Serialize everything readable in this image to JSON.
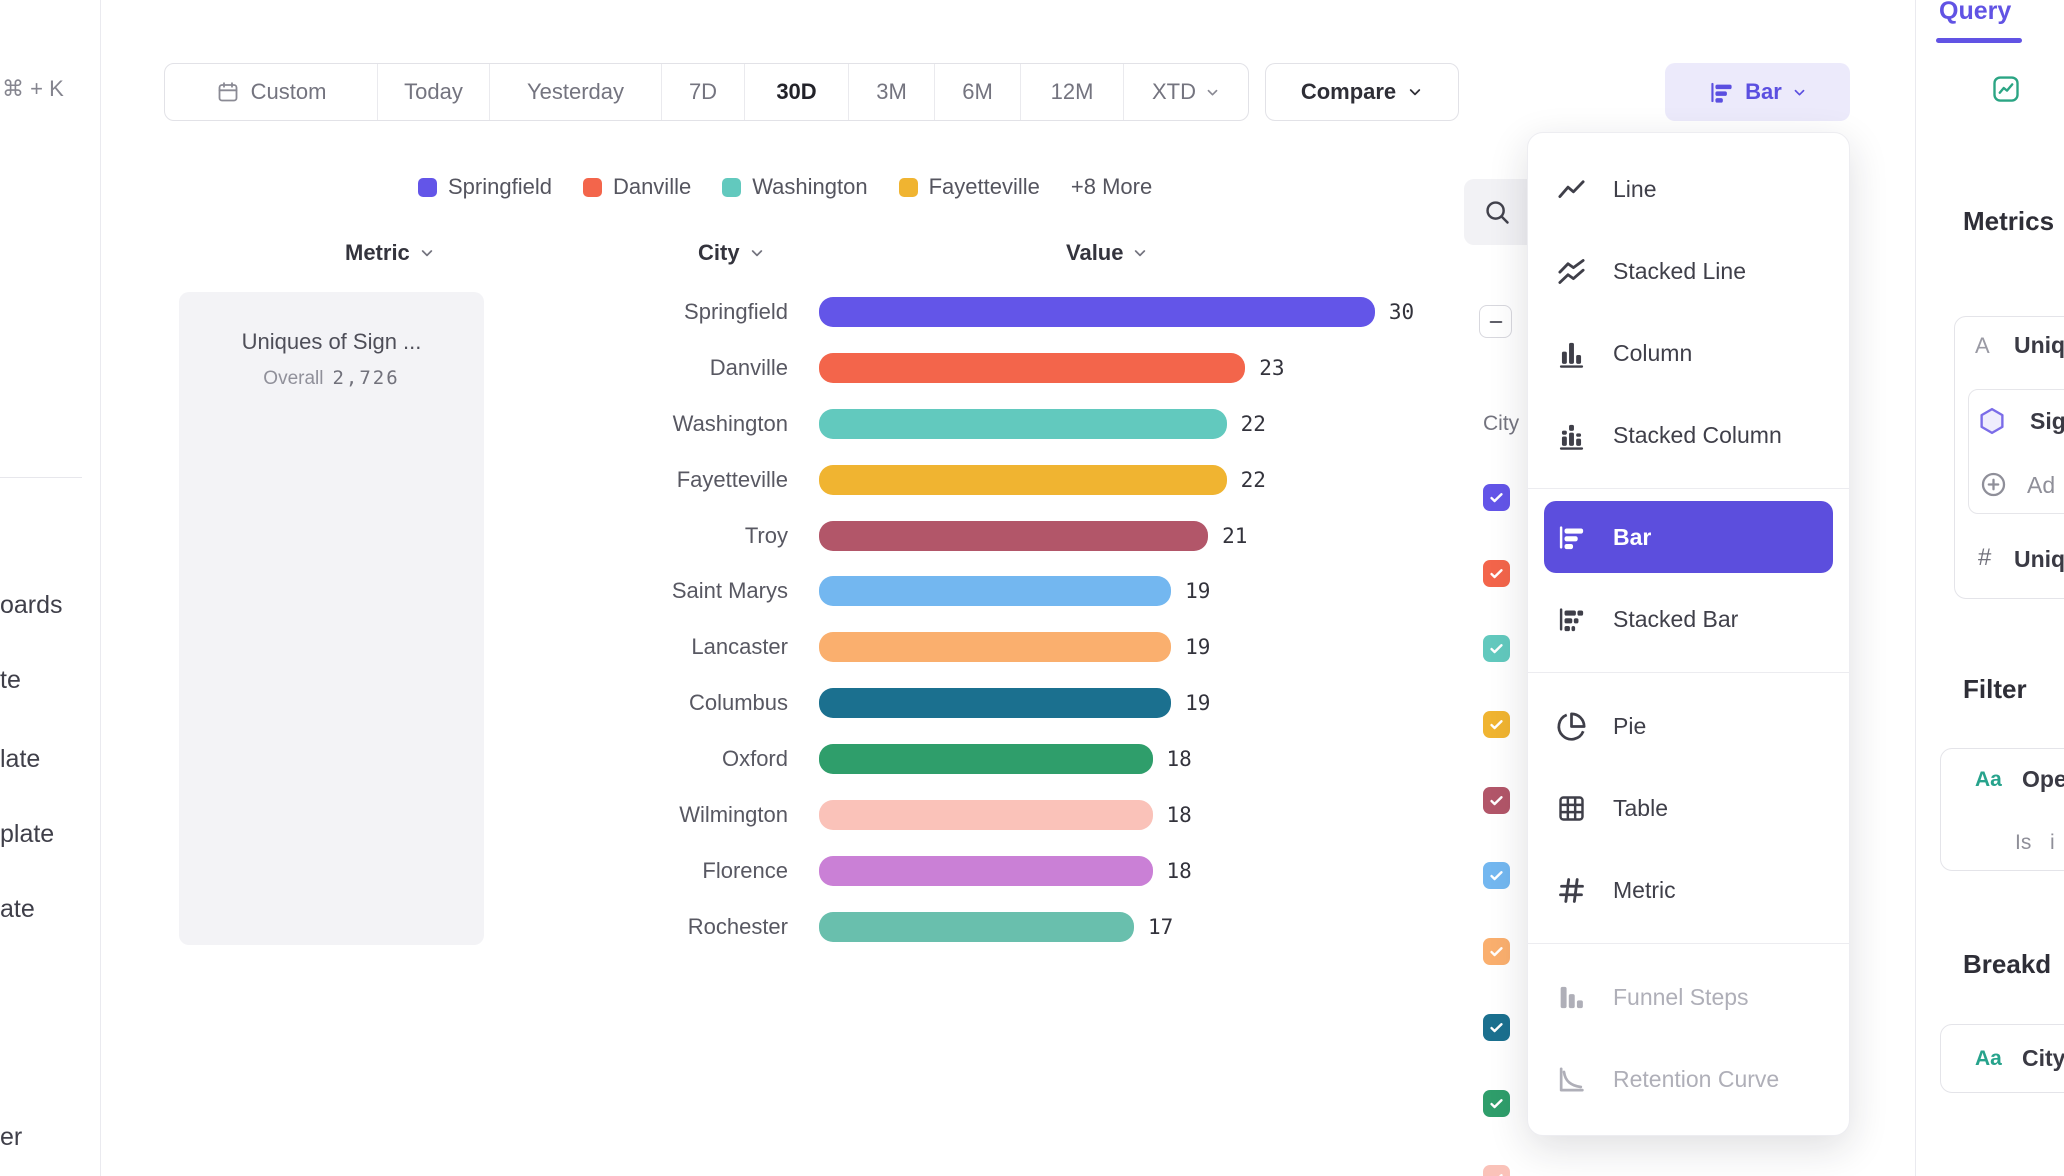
{
  "sidebar": {
    "shortcut": "⌘ + K",
    "nav_fragments": [
      "oards",
      "te",
      "late",
      "plate",
      "ate",
      "er"
    ]
  },
  "toolbar": {
    "date_ranges": [
      {
        "label": "Custom",
        "icon": "calendar-icon"
      },
      {
        "label": "Today"
      },
      {
        "label": "Yesterday"
      },
      {
        "label": "7D"
      },
      {
        "label": "30D",
        "active": true
      },
      {
        "label": "3M"
      },
      {
        "label": "6M"
      },
      {
        "label": "12M"
      },
      {
        "label": "XTD",
        "chevron": true
      }
    ],
    "compare_label": "Compare",
    "chart_type_label": "Bar"
  },
  "chart_menu": {
    "items": [
      {
        "label": "Line",
        "icon": "line-chart-icon"
      },
      {
        "label": "Stacked Line",
        "icon": "stacked-line-chart-icon"
      },
      {
        "label": "Column",
        "icon": "column-chart-icon"
      },
      {
        "label": "Stacked Column",
        "icon": "stacked-column-chart-icon",
        "divider_after": true
      },
      {
        "label": "Bar",
        "icon": "bar-chart-icon",
        "selected": true
      },
      {
        "label": "Stacked Bar",
        "icon": "stacked-bar-chart-icon",
        "divider_after": true
      },
      {
        "label": "Pie",
        "icon": "pie-chart-icon"
      },
      {
        "label": "Table",
        "icon": "table-chart-icon"
      },
      {
        "label": "Metric",
        "icon": "metric-chart-icon",
        "divider_after": true
      },
      {
        "label": "Funnel Steps",
        "icon": "funnel-steps-icon",
        "disabled": true
      },
      {
        "label": "Retention Curve",
        "icon": "retention-curve-icon",
        "disabled": true
      }
    ]
  },
  "chart_data": {
    "type": "bar",
    "orientation": "horizontal",
    "metric_title": "Uniques of Sign ...",
    "overall_label": "Overall",
    "overall_value": "2,726",
    "columns": [
      "Metric",
      "City",
      "Value"
    ],
    "categories": [
      "Springfield",
      "Danville",
      "Washington",
      "Fayetteville",
      "Troy",
      "Saint Marys",
      "Lancaster",
      "Columbus",
      "Oxford",
      "Wilmington",
      "Florence",
      "Rochester"
    ],
    "values": [
      30,
      23,
      22,
      22,
      21,
      19,
      19,
      19,
      18,
      18,
      18,
      17
    ],
    "colors": [
      "#6355E8",
      "#F3654B",
      "#62C9BE",
      "#F0B431",
      "#B25669",
      "#73B7F0",
      "#FAAF6E",
      "#1B708F",
      "#2F9E6B",
      "#FAC2B9",
      "#CA80D6",
      "#69BFAD"
    ],
    "xlim": [
      0,
      30
    ],
    "legend": {
      "items": [
        {
          "label": "Springfield",
          "color": "#6355E8"
        },
        {
          "label": "Danville",
          "color": "#F3654B"
        },
        {
          "label": "Washington",
          "color": "#62C9BE"
        },
        {
          "label": "Fayetteville",
          "color": "#F0B431"
        }
      ],
      "more_label": "+8 More"
    }
  },
  "series_panel": {
    "city_header": "City",
    "checkbox_colors": [
      "#6355E8",
      "#F3654B",
      "#62C9BE",
      "#F0B431",
      "#B25669",
      "#73B7F0",
      "#FAAF6E",
      "#1B708F",
      "#2F9E6B",
      "#FAC2B9"
    ]
  },
  "query_panel": {
    "tab_label": "Query",
    "metrics_heading": "Metrics",
    "metric_letter": "A",
    "metric_name": "Uniq",
    "event_name": "Sig",
    "add_label": "Ad",
    "aggregation_prefix": "#",
    "aggregation_name": "Uniq",
    "filter_heading": "Filter",
    "filter_type_badge": "Aa",
    "filter_property": "Ope",
    "filter_operator": "Is",
    "filter_value_fragment": "i",
    "breakdown_heading": "Breakd",
    "breakdown_type_badge": "Aa",
    "breakdown_property": "City"
  },
  "colors": {
    "accent": "#5C4EDD",
    "accent_light_bg": "#ECEAFB",
    "string_type_badge": "#27A38C",
    "event_hexagon": "#7B6CE8"
  }
}
